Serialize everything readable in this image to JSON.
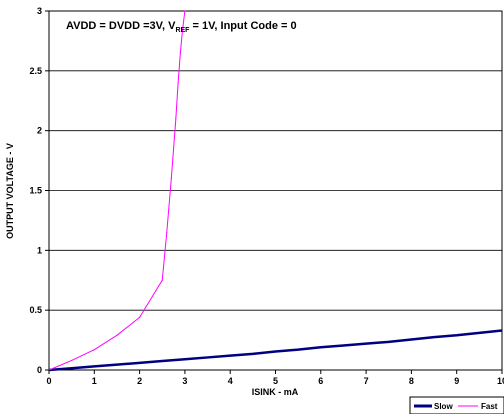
{
  "chart_data": {
    "type": "line",
    "annotation": {
      "prefix": "AVDD = DVDD =3V, V",
      "sub": "REF",
      "suffix": " = 1V, Input Code = 0"
    },
    "xlabel": "ISINK - mA",
    "ylabel": "OUTPUT VOLTAGE - V",
    "xlim": [
      0,
      10
    ],
    "ylim": [
      0,
      3
    ],
    "xticks": [
      "0",
      "1",
      "2",
      "3",
      "4",
      "5",
      "6",
      "7",
      "8",
      "9",
      "10"
    ],
    "yticks": [
      "0",
      "0.5",
      "1",
      "1.5",
      "2",
      "2.5",
      "3"
    ],
    "grid": "horizontal",
    "legend_position": "bottom-right",
    "series": [
      {
        "name": "Slow",
        "color": "#000080",
        "x": [
          0,
          0.5,
          1,
          1.5,
          2,
          2.5,
          3,
          3.5,
          4,
          4.5,
          5,
          5.5,
          6,
          6.5,
          7,
          7.5,
          8,
          8.5,
          9,
          9.5,
          10
        ],
        "y": [
          0,
          0.015,
          0.03,
          0.045,
          0.06,
          0.075,
          0.09,
          0.105,
          0.12,
          0.135,
          0.155,
          0.17,
          0.19,
          0.205,
          0.22,
          0.235,
          0.255,
          0.275,
          0.29,
          0.31,
          0.33
        ]
      },
      {
        "name": "Fast",
        "color": "#ff00ff",
        "x": [
          0,
          0.5,
          1,
          1.5,
          2,
          2.5,
          2.6,
          2.7,
          2.8,
          2.85,
          2.9,
          2.95,
          3.0
        ],
        "y": [
          0,
          0.08,
          0.17,
          0.29,
          0.44,
          0.75,
          1.15,
          1.6,
          2.1,
          2.4,
          2.65,
          2.85,
          3.0
        ]
      }
    ]
  }
}
